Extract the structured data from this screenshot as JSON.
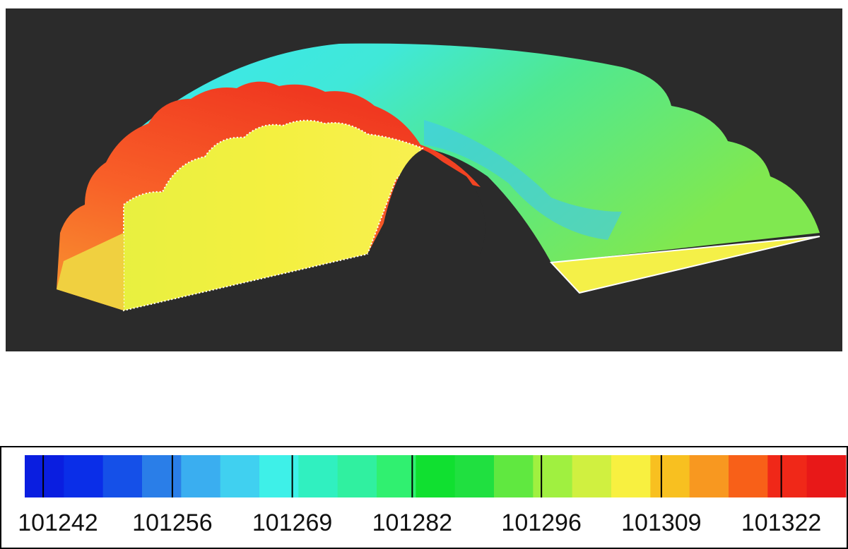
{
  "colorbar": {
    "range": [
      101240,
      101329
    ],
    "ticks": [
      101242,
      101256,
      101269,
      101282,
      101296,
      101309,
      101322
    ],
    "colors": [
      "#0a1ee0",
      "#0a2ee8",
      "#1550e8",
      "#2a7ee8",
      "#3aaef0",
      "#40d0f0",
      "#3ef0e8",
      "#30f0c0",
      "#30f0a0",
      "#30f070",
      "#10e030",
      "#20e040",
      "#60e840",
      "#a0f040",
      "#d0f040",
      "#f8f040",
      "#f8c020",
      "#f89820",
      "#f86018",
      "#f02818",
      "#e81818"
    ]
  }
}
